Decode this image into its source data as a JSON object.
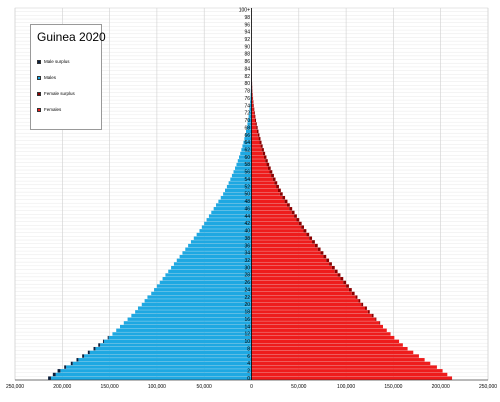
{
  "chart_data": {
    "type": "bar",
    "orientation": "horizontal-population-pyramid",
    "title": "Guinea 2020",
    "legend": {
      "placement": "top-left",
      "entries": [
        {
          "label": "Male surplus",
          "color": "#0a1f3d"
        },
        {
          "label": "Males",
          "color": "#1ea8e2"
        },
        {
          "label": "Female surplus",
          "color": "#8b0000"
        },
        {
          "label": "Females",
          "color": "#ee1c1c"
        }
      ]
    },
    "colors": {
      "males": "#1ea8e2",
      "females": "#ee1c1c",
      "male_surplus": "#0a1f3d",
      "female_surplus": "#8b0000"
    },
    "x_ticks": [
      {
        "value": -250000,
        "label": "250,000"
      },
      {
        "value": -200000,
        "label": "200,000"
      },
      {
        "value": -150000,
        "label": "150,000"
      },
      {
        "value": -100000,
        "label": "100,000"
      },
      {
        "value": -50000,
        "label": "50,000"
      },
      {
        "value": 0,
        "label": "0"
      },
      {
        "value": 50000,
        "label": "50,000"
      },
      {
        "value": 100000,
        "label": "100,000"
      },
      {
        "value": 150000,
        "label": "150,000"
      },
      {
        "value": 200000,
        "label": "200,000"
      },
      {
        "value": 250000,
        "label": "250,000"
      }
    ],
    "xlim": [
      -250000,
      250000
    ],
    "grid": true,
    "age_labels": [
      "0",
      "2",
      "4",
      "6",
      "8",
      "10",
      "12",
      "14",
      "16",
      "18",
      "20",
      "22",
      "24",
      "26",
      "28",
      "30",
      "32",
      "34",
      "36",
      "38",
      "40",
      "42",
      "44",
      "46",
      "48",
      "50",
      "52",
      "54",
      "56",
      "58",
      "60",
      "62",
      "64",
      "66",
      "68",
      "70",
      "72",
      "74",
      "76",
      "78",
      "80",
      "82",
      "84",
      "86",
      "88",
      "90",
      "92",
      "94",
      "96",
      "98",
      "100+"
    ],
    "ages": [
      "0",
      "1",
      "2",
      "3",
      "4",
      "5",
      "6",
      "7",
      "8",
      "9",
      "10",
      "11",
      "12",
      "13",
      "14",
      "15",
      "16",
      "17",
      "18",
      "19",
      "20",
      "21",
      "22",
      "23",
      "24",
      "25",
      "26",
      "27",
      "28",
      "29",
      "30",
      "31",
      "32",
      "33",
      "34",
      "35",
      "36",
      "37",
      "38",
      "39",
      "40",
      "41",
      "42",
      "43",
      "44",
      "45",
      "46",
      "47",
      "48",
      "49",
      "50",
      "51",
      "52",
      "53",
      "54",
      "55",
      "56",
      "57",
      "58",
      "59",
      "60",
      "61",
      "62",
      "63",
      "64",
      "65",
      "66",
      "67",
      "68",
      "69",
      "70",
      "71",
      "72",
      "73",
      "74",
      "75",
      "76",
      "77",
      "78",
      "79",
      "80",
      "81",
      "82",
      "83",
      "84",
      "85",
      "86",
      "87",
      "88",
      "89",
      "90",
      "91",
      "92",
      "93",
      "94",
      "95",
      "96",
      "97",
      "98",
      "99",
      "100+"
    ],
    "males": [
      215000,
      210000,
      205000,
      198000,
      191000,
      185000,
      179000,
      173000,
      167000,
      162000,
      157000,
      152000,
      147000,
      143000,
      139000,
      135000,
      131000,
      127000,
      123000,
      120000,
      116000,
      113000,
      110000,
      106000,
      103000,
      100000,
      97000,
      94000,
      91000,
      88000,
      85000,
      82000,
      79000,
      76000,
      73000,
      70000,
      67000,
      64000,
      61000,
      58000,
      55000,
      52500,
      50000,
      47500,
      45000,
      42500,
      40000,
      37500,
      35000,
      32500,
      30000,
      28000,
      26000,
      24200,
      22400,
      20700,
      19000,
      17400,
      15900,
      14500,
      13200,
      11900,
      10700,
      9600,
      8500,
      7500,
      6600,
      5800,
      5000,
      4300,
      3700,
      3100,
      2600,
      2200,
      1800,
      1500,
      1200,
      950,
      750,
      580,
      440,
      330,
      240,
      170,
      120,
      80,
      55,
      35,
      22,
      14,
      8,
      5,
      3,
      2,
      1,
      0,
      0,
      0,
      0,
      0,
      0
    ],
    "females": [
      212000,
      207000,
      202000,
      196000,
      189000,
      183000,
      177000,
      171000,
      165000,
      160000,
      156000,
      151000,
      147000,
      143000,
      139000,
      136000,
      132000,
      129000,
      125000,
      122000,
      118000,
      115000,
      112000,
      109000,
      106000,
      103000,
      100000,
      97000,
      94000,
      91000,
      88000,
      85000,
      82000,
      79000,
      76000,
      73000,
      70000,
      67000,
      64000,
      61000,
      58000,
      55500,
      53000,
      50500,
      48000,
      45500,
      43000,
      40500,
      38000,
      35500,
      33000,
      31000,
      29000,
      27200,
      25400,
      23700,
      22000,
      20300,
      18700,
      17200,
      15800,
      14400,
      13100,
      11800,
      10600,
      9500,
      8400,
      7400,
      6500,
      5600,
      4800,
      4100,
      3500,
      2950,
      2450,
      2000,
      1650,
      1300,
      1050,
      820,
      640,
      490,
      370,
      270,
      195,
      140,
      95,
      65,
      42,
      28,
      17,
      10,
      6,
      3,
      2,
      1,
      0,
      0,
      0,
      0,
      0
    ]
  }
}
